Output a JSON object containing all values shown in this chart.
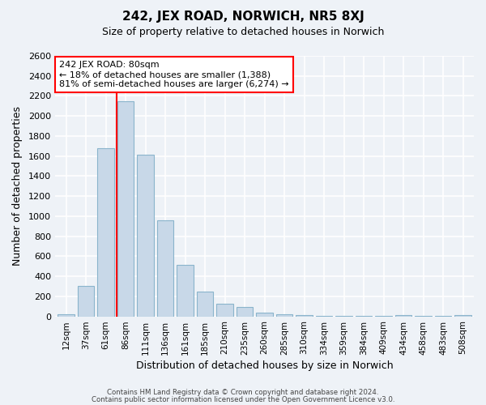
{
  "title": "242, JEX ROAD, NORWICH, NR5 8XJ",
  "subtitle": "Size of property relative to detached houses in Norwich",
  "xlabel": "Distribution of detached houses by size in Norwich",
  "ylabel": "Number of detached properties",
  "bar_color": "#c8d8e8",
  "bar_edge_color": "#8ab4cc",
  "background_color": "#eef2f7",
  "grid_color": "#ffffff",
  "categories": [
    "12sqm",
    "37sqm",
    "61sqm",
    "86sqm",
    "111sqm",
    "136sqm",
    "161sqm",
    "185sqm",
    "210sqm",
    "235sqm",
    "260sqm",
    "285sqm",
    "310sqm",
    "334sqm",
    "359sqm",
    "384sqm",
    "409sqm",
    "434sqm",
    "458sqm",
    "483sqm",
    "508sqm"
  ],
  "values": [
    18,
    300,
    1680,
    2150,
    1610,
    960,
    510,
    245,
    125,
    95,
    40,
    22,
    12,
    8,
    5,
    3,
    2,
    10,
    2,
    2,
    10
  ],
  "ylim": [
    0,
    2600
  ],
  "yticks": [
    0,
    200,
    400,
    600,
    800,
    1000,
    1200,
    1400,
    1600,
    1800,
    2000,
    2200,
    2400,
    2600
  ],
  "red_line_index": 3,
  "annotation_title": "242 JEX ROAD: 80sqm",
  "annotation_line1": "← 18% of detached houses are smaller (1,388)",
  "annotation_line2": "81% of semi-detached houses are larger (6,274) →",
  "footer_line1": "Contains HM Land Registry data © Crown copyright and database right 2024.",
  "footer_line2": "Contains public sector information licensed under the Open Government Licence v3.0."
}
